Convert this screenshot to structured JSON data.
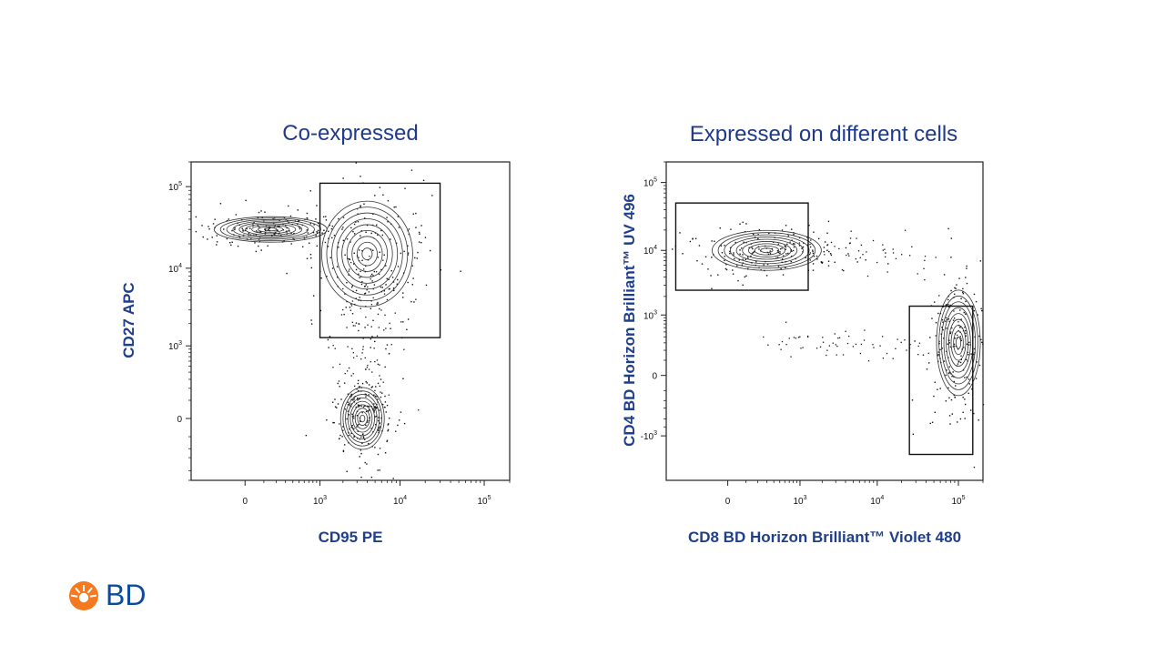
{
  "chart_data": [
    {
      "type": "scatter",
      "title": "Co-expressed",
      "xlabel": "CD95 PE",
      "ylabel": "CD27 APC",
      "x_ticks": [
        "0",
        "10^3",
        "10^4",
        "10^5"
      ],
      "y_ticks": [
        "0",
        "10^3",
        "10^4",
        "10^5"
      ],
      "populations": [
        {
          "name": "",
          "x": 150,
          "y": 30000
        },
        {
          "name": "",
          "x": 4000,
          "y": 15000
        },
        {
          "name": "",
          "x": 3500,
          "y": 0
        }
      ],
      "gates": [
        {
          "x": [
            1000,
            30000
          ],
          "y": [
            1300,
            110000
          ]
        }
      ]
    },
    {
      "type": "scatter",
      "title": "Expressed on different cells",
      "xlabel": "CD8 BD Horizon Brilliant™ Violet 480",
      "ylabel": "CD4 BD Horizon Brilliant™ UV 496",
      "x_ticks": [
        "0",
        "10^3",
        "10^4",
        "10^5"
      ],
      "y_ticks": [
        "-10^3",
        "0",
        "10^3",
        "10^4",
        "10^5"
      ],
      "populations": [
        {
          "name": "",
          "x": 300,
          "y": 10000
        },
        {
          "name": "",
          "x": 100000,
          "y": 300
        }
      ],
      "gates": [
        {
          "x": [
            -500,
            1300
          ],
          "y": [
            2500,
            50000
          ]
        },
        {
          "x": [
            25000,
            150000
          ],
          "y": [
            -2000,
            1400
          ]
        }
      ]
    }
  ],
  "brand": {
    "name": "BD",
    "color": "#0c4a9c",
    "logo_color": "#f47920"
  }
}
